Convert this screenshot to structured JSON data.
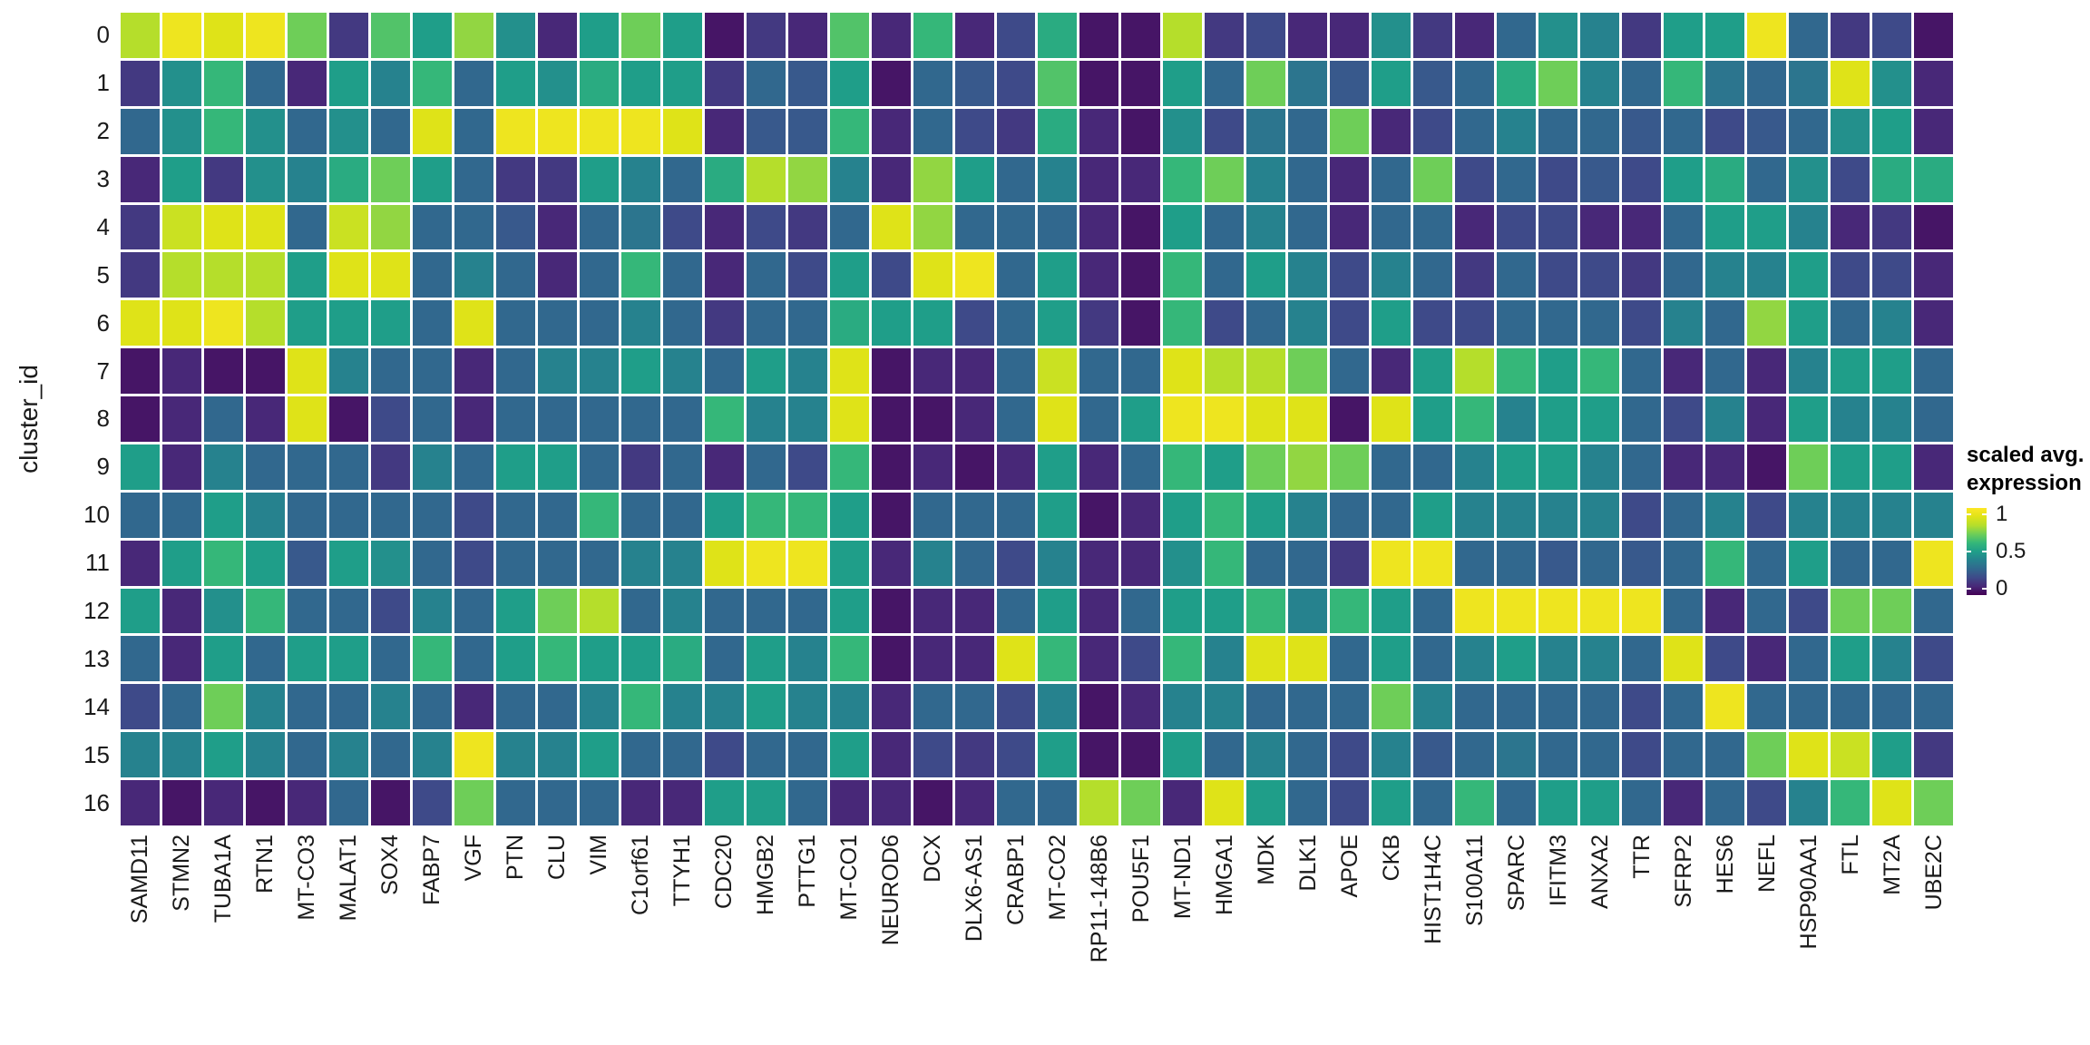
{
  "figure": {
    "background": "#ffffff",
    "grid_line_color": "#ffffff"
  },
  "chart_data": {
    "type": "heatmap",
    "title": "",
    "xlabel": "",
    "ylabel": "cluster_id",
    "legend": {
      "title_lines": [
        "scaled avg.",
        "expression"
      ],
      "ticks": [
        "1",
        "0.5",
        "0"
      ],
      "tick_values": [
        1,
        0.5,
        0
      ],
      "position": "right"
    },
    "colormap": {
      "name": "viridis",
      "stops": [
        "#440154",
        "#482878",
        "#3e4a89",
        "#31688e",
        "#26828e",
        "#1f9e89",
        "#35b779",
        "#6ece58",
        "#b5de2b",
        "#dfe318",
        "#fde725"
      ]
    },
    "value_range": [
      0,
      1
    ],
    "genes": [
      "SAMD11",
      "STMN2",
      "TUBA1A",
      "RTN1",
      "MT-CO3",
      "MALAT1",
      "SOX4",
      "FABP7",
      "VGF",
      "PTN",
      "CLU",
      "VIM",
      "C1orf61",
      "TTYH1",
      "CDC20",
      "HMGB2",
      "PTTG1",
      "MT-CO1",
      "NEUROD6",
      "DCX",
      "DLX6-AS1",
      "CRABP1",
      "MT-CO2",
      "RP11-148B6",
      "POU5F1",
      "MT-ND1",
      "HMGA1",
      "MDK",
      "DLK1",
      "APOE",
      "CKB",
      "HIST1H4C",
      "S100A11",
      "SPARC",
      "IFITM3",
      "ANXA2",
      "TTR",
      "SFRP2",
      "HES6",
      "NEFL",
      "HSP90AA1",
      "FTL",
      "MT2A",
      "UBE2C"
    ],
    "clusters": [
      "0",
      "1",
      "2",
      "3",
      "4",
      "5",
      "6",
      "7",
      "8",
      "9",
      "10",
      "11",
      "12",
      "13",
      "14",
      "15",
      "16"
    ],
    "values": [
      [
        0.8,
        0.95,
        0.9,
        0.95,
        0.7,
        0.15,
        0.65,
        0.5,
        0.75,
        0.45,
        0.1,
        0.5,
        0.7,
        0.5,
        0.05,
        0.15,
        0.1,
        0.65,
        0.1,
        0.6,
        0.1,
        0.2,
        0.55,
        0.05,
        0.05,
        0.8,
        0.15,
        0.2,
        0.1,
        0.1,
        0.45,
        0.15,
        0.1,
        0.3,
        0.45,
        0.4,
        0.15,
        0.5,
        0.5,
        0.95,
        0.3,
        0.15,
        0.2,
        0.05
      ],
      [
        0.15,
        0.45,
        0.6,
        0.3,
        0.1,
        0.5,
        0.4,
        0.6,
        0.3,
        0.5,
        0.45,
        0.55,
        0.5,
        0.5,
        0.15,
        0.3,
        0.25,
        0.5,
        0.05,
        0.3,
        0.25,
        0.2,
        0.65,
        0.05,
        0.05,
        0.5,
        0.3,
        0.7,
        0.35,
        0.25,
        0.5,
        0.25,
        0.3,
        0.55,
        0.7,
        0.4,
        0.3,
        0.6,
        0.35,
        0.3,
        0.35,
        0.9,
        0.45,
        0.1
      ],
      [
        0.3,
        0.45,
        0.6,
        0.45,
        0.3,
        0.45,
        0.3,
        0.9,
        0.3,
        0.95,
        0.95,
        0.95,
        0.95,
        0.9,
        0.1,
        0.25,
        0.25,
        0.6,
        0.1,
        0.3,
        0.2,
        0.15,
        0.55,
        0.1,
        0.05,
        0.45,
        0.2,
        0.35,
        0.3,
        0.7,
        0.1,
        0.2,
        0.3,
        0.4,
        0.3,
        0.3,
        0.25,
        0.3,
        0.2,
        0.25,
        0.3,
        0.45,
        0.5,
        0.1
      ],
      [
        0.1,
        0.5,
        0.15,
        0.45,
        0.4,
        0.55,
        0.7,
        0.5,
        0.3,
        0.15,
        0.15,
        0.5,
        0.4,
        0.3,
        0.55,
        0.8,
        0.75,
        0.4,
        0.1,
        0.75,
        0.5,
        0.3,
        0.4,
        0.1,
        0.1,
        0.6,
        0.7,
        0.4,
        0.3,
        0.1,
        0.3,
        0.7,
        0.2,
        0.3,
        0.2,
        0.25,
        0.2,
        0.5,
        0.55,
        0.3,
        0.45,
        0.2,
        0.55,
        0.55
      ],
      [
        0.15,
        0.85,
        0.9,
        0.9,
        0.3,
        0.85,
        0.75,
        0.3,
        0.3,
        0.25,
        0.1,
        0.3,
        0.35,
        0.2,
        0.1,
        0.2,
        0.15,
        0.3,
        0.9,
        0.75,
        0.3,
        0.3,
        0.3,
        0.1,
        0.05,
        0.5,
        0.3,
        0.4,
        0.3,
        0.1,
        0.3,
        0.3,
        0.1,
        0.2,
        0.2,
        0.1,
        0.1,
        0.3,
        0.5,
        0.5,
        0.4,
        0.1,
        0.15,
        0.05
      ],
      [
        0.15,
        0.8,
        0.8,
        0.8,
        0.5,
        0.9,
        0.9,
        0.3,
        0.4,
        0.3,
        0.1,
        0.3,
        0.6,
        0.3,
        0.1,
        0.3,
        0.2,
        0.5,
        0.2,
        0.9,
        0.95,
        0.3,
        0.5,
        0.1,
        0.05,
        0.6,
        0.3,
        0.5,
        0.4,
        0.2,
        0.4,
        0.3,
        0.15,
        0.3,
        0.2,
        0.2,
        0.15,
        0.3,
        0.4,
        0.4,
        0.5,
        0.2,
        0.2,
        0.1
      ],
      [
        0.9,
        0.9,
        0.95,
        0.8,
        0.5,
        0.5,
        0.5,
        0.3,
        0.9,
        0.3,
        0.3,
        0.3,
        0.4,
        0.3,
        0.15,
        0.3,
        0.3,
        0.55,
        0.5,
        0.5,
        0.2,
        0.3,
        0.5,
        0.15,
        0.05,
        0.6,
        0.2,
        0.3,
        0.4,
        0.2,
        0.5,
        0.2,
        0.2,
        0.3,
        0.3,
        0.3,
        0.2,
        0.4,
        0.3,
        0.75,
        0.5,
        0.3,
        0.4,
        0.1
      ],
      [
        0.05,
        0.1,
        0.05,
        0.05,
        0.9,
        0.4,
        0.3,
        0.3,
        0.1,
        0.3,
        0.4,
        0.4,
        0.5,
        0.4,
        0.3,
        0.5,
        0.4,
        0.9,
        0.05,
        0.1,
        0.1,
        0.3,
        0.85,
        0.3,
        0.3,
        0.9,
        0.8,
        0.8,
        0.7,
        0.3,
        0.1,
        0.5,
        0.8,
        0.6,
        0.5,
        0.6,
        0.3,
        0.1,
        0.3,
        0.1,
        0.4,
        0.5,
        0.5,
        0.3
      ],
      [
        0.05,
        0.1,
        0.3,
        0.1,
        0.9,
        0.05,
        0.2,
        0.3,
        0.1,
        0.3,
        0.3,
        0.3,
        0.3,
        0.3,
        0.6,
        0.4,
        0.4,
        0.9,
        0.05,
        0.05,
        0.1,
        0.3,
        0.9,
        0.3,
        0.5,
        0.95,
        0.95,
        0.9,
        0.9,
        0.05,
        0.9,
        0.5,
        0.6,
        0.4,
        0.5,
        0.5,
        0.3,
        0.2,
        0.4,
        0.1,
        0.5,
        0.4,
        0.4,
        0.3
      ],
      [
        0.5,
        0.1,
        0.4,
        0.3,
        0.3,
        0.3,
        0.15,
        0.4,
        0.3,
        0.5,
        0.5,
        0.3,
        0.15,
        0.3,
        0.1,
        0.3,
        0.2,
        0.6,
        0.05,
        0.1,
        0.05,
        0.1,
        0.5,
        0.1,
        0.3,
        0.6,
        0.5,
        0.7,
        0.75,
        0.7,
        0.3,
        0.3,
        0.4,
        0.5,
        0.5,
        0.4,
        0.3,
        0.1,
        0.1,
        0.05,
        0.7,
        0.5,
        0.5,
        0.1
      ],
      [
        0.3,
        0.3,
        0.5,
        0.4,
        0.3,
        0.3,
        0.3,
        0.3,
        0.2,
        0.3,
        0.3,
        0.6,
        0.3,
        0.3,
        0.5,
        0.6,
        0.6,
        0.5,
        0.05,
        0.3,
        0.3,
        0.3,
        0.5,
        0.05,
        0.1,
        0.5,
        0.6,
        0.5,
        0.4,
        0.3,
        0.3,
        0.5,
        0.4,
        0.4,
        0.4,
        0.4,
        0.2,
        0.3,
        0.4,
        0.2,
        0.4,
        0.4,
        0.4,
        0.4
      ],
      [
        0.1,
        0.5,
        0.6,
        0.5,
        0.25,
        0.5,
        0.45,
        0.3,
        0.2,
        0.3,
        0.3,
        0.3,
        0.4,
        0.4,
        0.9,
        0.95,
        0.95,
        0.5,
        0.1,
        0.4,
        0.3,
        0.2,
        0.4,
        0.1,
        0.1,
        0.45,
        0.6,
        0.3,
        0.3,
        0.15,
        0.95,
        0.95,
        0.3,
        0.3,
        0.25,
        0.3,
        0.25,
        0.3,
        0.6,
        0.3,
        0.5,
        0.3,
        0.3,
        0.95
      ],
      [
        0.5,
        0.1,
        0.45,
        0.6,
        0.3,
        0.3,
        0.2,
        0.4,
        0.3,
        0.5,
        0.7,
        0.8,
        0.3,
        0.4,
        0.3,
        0.3,
        0.3,
        0.5,
        0.05,
        0.1,
        0.1,
        0.3,
        0.5,
        0.1,
        0.3,
        0.5,
        0.5,
        0.6,
        0.4,
        0.6,
        0.5,
        0.3,
        0.95,
        0.95,
        0.95,
        0.95,
        0.95,
        0.3,
        0.1,
        0.3,
        0.2,
        0.7,
        0.7,
        0.3
      ],
      [
        0.3,
        0.1,
        0.5,
        0.3,
        0.5,
        0.5,
        0.3,
        0.6,
        0.3,
        0.5,
        0.6,
        0.5,
        0.5,
        0.55,
        0.3,
        0.5,
        0.4,
        0.6,
        0.05,
        0.1,
        0.1,
        0.9,
        0.6,
        0.1,
        0.2,
        0.6,
        0.4,
        0.9,
        0.9,
        0.3,
        0.5,
        0.3,
        0.4,
        0.5,
        0.4,
        0.4,
        0.3,
        0.9,
        0.2,
        0.1,
        0.3,
        0.5,
        0.4,
        0.2
      ],
      [
        0.2,
        0.3,
        0.7,
        0.4,
        0.3,
        0.3,
        0.4,
        0.3,
        0.1,
        0.3,
        0.3,
        0.4,
        0.6,
        0.4,
        0.4,
        0.5,
        0.4,
        0.4,
        0.1,
        0.3,
        0.3,
        0.2,
        0.4,
        0.05,
        0.1,
        0.4,
        0.4,
        0.3,
        0.3,
        0.3,
        0.7,
        0.4,
        0.3,
        0.3,
        0.3,
        0.3,
        0.2,
        0.3,
        0.95,
        0.3,
        0.3,
        0.3,
        0.3,
        0.3
      ],
      [
        0.4,
        0.4,
        0.5,
        0.4,
        0.3,
        0.4,
        0.3,
        0.4,
        0.95,
        0.4,
        0.4,
        0.5,
        0.3,
        0.3,
        0.2,
        0.3,
        0.3,
        0.5,
        0.1,
        0.2,
        0.15,
        0.2,
        0.5,
        0.05,
        0.05,
        0.5,
        0.3,
        0.4,
        0.3,
        0.2,
        0.4,
        0.25,
        0.3,
        0.35,
        0.3,
        0.3,
        0.2,
        0.3,
        0.3,
        0.7,
        0.9,
        0.85,
        0.5,
        0.15
      ],
      [
        0.1,
        0.05,
        0.1,
        0.05,
        0.1,
        0.3,
        0.05,
        0.2,
        0.7,
        0.3,
        0.3,
        0.3,
        0.1,
        0.1,
        0.5,
        0.5,
        0.3,
        0.1,
        0.1,
        0.05,
        0.1,
        0.3,
        0.3,
        0.8,
        0.7,
        0.1,
        0.9,
        0.5,
        0.3,
        0.2,
        0.5,
        0.3,
        0.6,
        0.3,
        0.5,
        0.5,
        0.3,
        0.1,
        0.3,
        0.2,
        0.4,
        0.6,
        0.9,
        0.7
      ]
    ]
  }
}
